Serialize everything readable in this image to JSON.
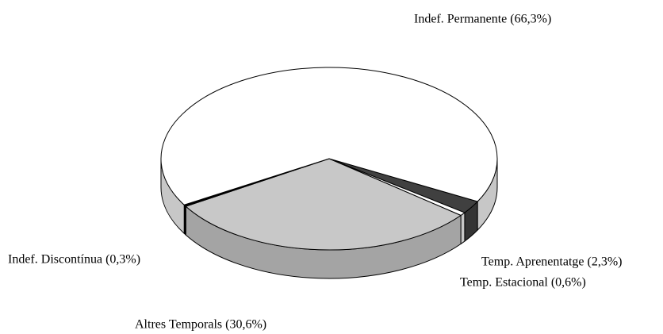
{
  "chart_data": {
    "type": "pie3d",
    "categories": [
      "Temp. Aprenentatge (2,3%)",
      "Temp. Estacional (0,6%)",
      "Altres Temporals (30,6%)",
      "Indef. Discontínua (0,3%)",
      "Indef. Permanente (66,3%)"
    ],
    "values": [
      2.3,
      0.6,
      30.6,
      0.3,
      66.3
    ],
    "colors": [
      "#404040",
      "#ffffff",
      "#c8c8c8",
      "#000000",
      "#ffffff"
    ]
  }
}
